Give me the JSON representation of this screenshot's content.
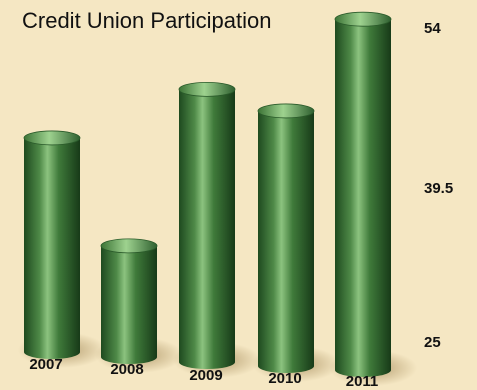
{
  "colors": {
    "background": "#f5e7c3",
    "bar": "#3f7a3a",
    "bar_highlight": "#6fab66",
    "bar_dark": "#1e4a1f"
  },
  "chart_data": {
    "type": "bar",
    "title": "Credit Union Participation",
    "categories": [
      "2007",
      "2008",
      "2009",
      "2010",
      "2011"
    ],
    "values": [
      44,
      34,
      48.5,
      46.5,
      55
    ],
    "ylim": [
      25,
      54
    ],
    "yticks": [
      "54",
      "39.5",
      "25"
    ],
    "grid": false,
    "legend": "none",
    "style": "3d-cylinder"
  }
}
